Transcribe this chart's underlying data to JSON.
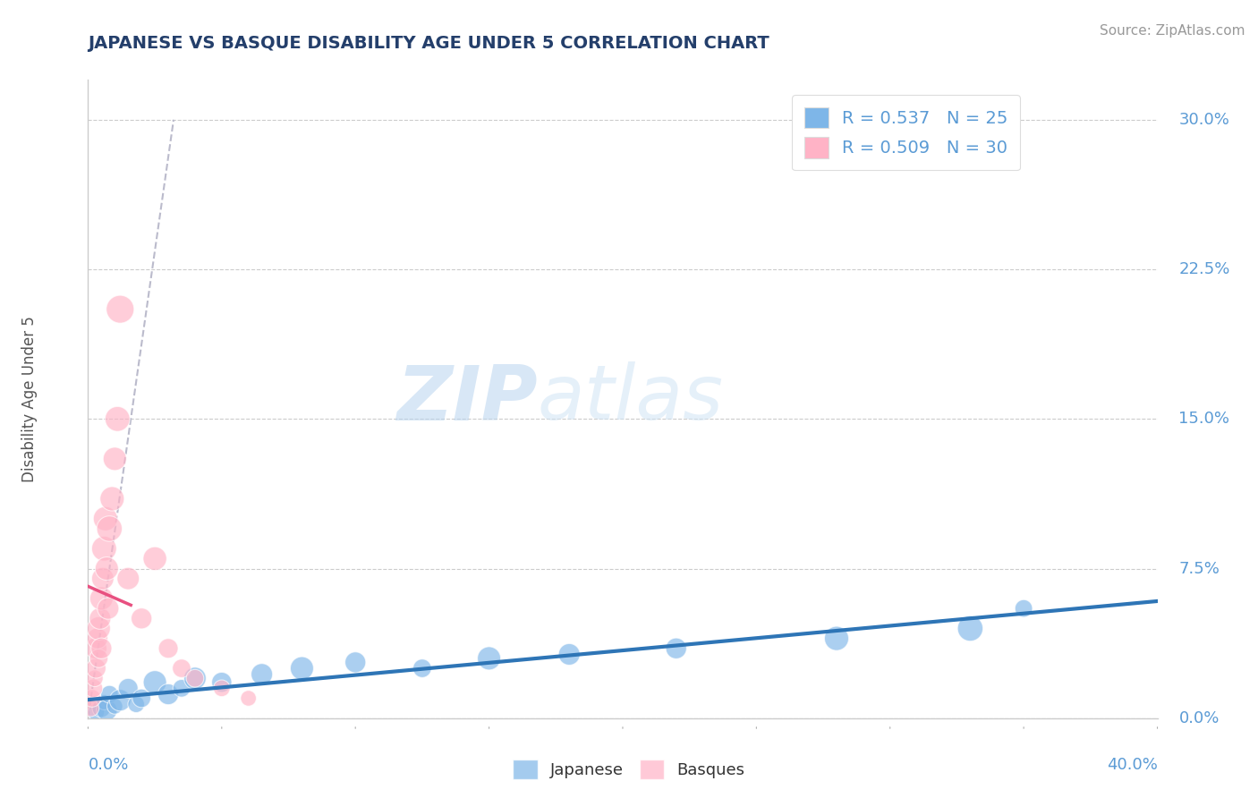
{
  "title": "JAPANESE VS BASQUE DISABILITY AGE UNDER 5 CORRELATION CHART",
  "source": "Source: ZipAtlas.com",
  "ylabel": "Disability Age Under 5",
  "ytick_values": [
    0.0,
    7.5,
    15.0,
    22.5,
    30.0
  ],
  "xlim": [
    0.0,
    40.0
  ],
  "ylim": [
    0.0,
    32.0
  ],
  "legend_entry1": "R = 0.537   N = 25",
  "legend_entry2": "R = 0.509   N = 30",
  "legend_label1": "Japanese",
  "legend_label2": "Basques",
  "watermark_zip": "ZIP",
  "watermark_atlas": "atlas",
  "blue_color": "#7EB6E8",
  "pink_color": "#FFB3C6",
  "trend_blue": "#2E75B6",
  "trend_pink": "#E85080",
  "trend_gray": "#BBBBCC",
  "title_color": "#243F6B",
  "axis_label_color": "#5B9BD5",
  "source_color": "#999999",
  "japanese_x": [
    0.3,
    0.5,
    0.6,
    0.7,
    0.8,
    1.0,
    1.2,
    1.5,
    1.8,
    2.0,
    2.5,
    3.0,
    3.5,
    4.0,
    5.0,
    6.5,
    8.0,
    10.0,
    12.5,
    15.0,
    18.0,
    22.0,
    28.0,
    33.0,
    35.0
  ],
  "japanese_y": [
    0.3,
    0.5,
    0.8,
    0.4,
    1.2,
    0.6,
    0.9,
    1.5,
    0.7,
    1.0,
    1.8,
    1.2,
    1.5,
    2.0,
    1.8,
    2.2,
    2.5,
    2.8,
    2.5,
    3.0,
    3.2,
    3.5,
    4.0,
    4.5,
    5.5
  ],
  "japanese_sizes": [
    180,
    220,
    150,
    280,
    200,
    160,
    300,
    250,
    180,
    220,
    350,
    280,
    200,
    320,
    260,
    300,
    350,
    280,
    220,
    350,
    300,
    280,
    380,
    420,
    200
  ],
  "basques_x": [
    0.1,
    0.15,
    0.2,
    0.25,
    0.3,
    0.3,
    0.35,
    0.4,
    0.4,
    0.45,
    0.5,
    0.5,
    0.55,
    0.6,
    0.65,
    0.7,
    0.75,
    0.8,
    0.9,
    1.0,
    1.1,
    1.2,
    1.5,
    2.0,
    2.5,
    3.0,
    3.5,
    4.0,
    5.0,
    6.0
  ],
  "basques_y": [
    0.5,
    1.0,
    1.5,
    2.0,
    2.5,
    3.5,
    4.0,
    4.5,
    3.0,
    5.0,
    6.0,
    3.5,
    7.0,
    8.5,
    10.0,
    7.5,
    5.5,
    9.5,
    11.0,
    13.0,
    15.0,
    20.5,
    7.0,
    5.0,
    8.0,
    3.5,
    2.5,
    2.0,
    1.5,
    1.0
  ],
  "basques_sizes": [
    180,
    200,
    220,
    180,
    250,
    300,
    280,
    350,
    220,
    300,
    350,
    280,
    320,
    400,
    380,
    350,
    300,
    420,
    380,
    350,
    400,
    500,
    320,
    280,
    360,
    250,
    220,
    200,
    180,
    160
  ]
}
